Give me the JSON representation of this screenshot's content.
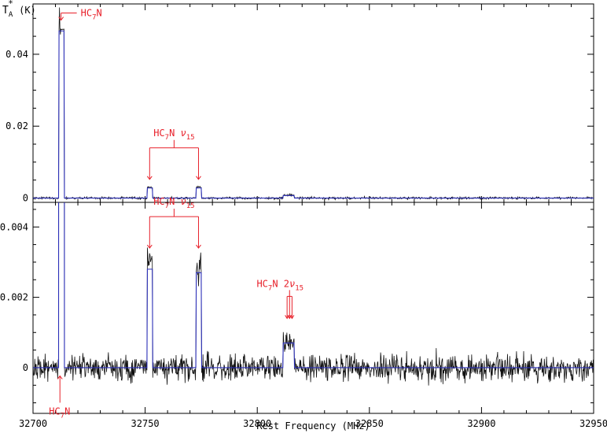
{
  "chart_data": [
    {
      "type": "line",
      "panel": "top",
      "ylabel": "T",
      "ylabel_sub": "A",
      "ylabel_sup": "*",
      "ylabel_unit": "(K)",
      "xlim": [
        32700,
        32950
      ],
      "ylim": [
        -0.0012,
        0.054
      ],
      "yticks": [
        0,
        0.02,
        0.04
      ],
      "ytick_labels": [
        "0",
        "0.02",
        "0.04"
      ],
      "series": [
        {
          "role": "observed",
          "color": "#111111",
          "spikes": [
            {
              "x": 32711.8,
              "y": 0.053
            },
            {
              "x": 32712.3,
              "y": 0.0455
            },
            {
              "x": 32713.6,
              "y": 0.047
            }
          ],
          "plateaus": [
            {
              "from": 32711.5,
              "to": 32713.9,
              "level": 0.047
            },
            {
              "from": 32751.0,
              "to": 32753.4,
              "level": 0.003
            },
            {
              "from": 32772.8,
              "to": 32775.2,
              "level": 0.003
            },
            {
              "from": 32811.5,
              "to": 32816.5,
              "level": 0.0008
            }
          ],
          "noise_rms": 0.00035
        },
        {
          "role": "model",
          "color": "#2b2fb8",
          "plateaus": [
            {
              "from": 32711.5,
              "to": 32713.9,
              "level": 0.0465
            },
            {
              "from": 32751.0,
              "to": 32753.4,
              "level": 0.0028
            },
            {
              "from": 32772.8,
              "to": 32775.2,
              "level": 0.0028
            },
            {
              "from": 32811.5,
              "to": 32816.5,
              "level": 0.0007
            }
          ]
        }
      ],
      "annotations": [
        {
          "label": "HC",
          "sub": "7",
          "tail": "N",
          "targets": [
            32712.5
          ],
          "target_y": 0.0495
        },
        {
          "label": "HC",
          "sub": "7",
          "tail": "N  ",
          "greek": "ν",
          "greek_sub": "15",
          "targets": [
            32752.0,
            32773.8
          ],
          "target_y": 0.0052
        }
      ]
    },
    {
      "type": "line",
      "panel": "bottom",
      "xlabel": "Rest Frequency (MHz)",
      "xlim": [
        32700,
        32950
      ],
      "ylim": [
        -0.0013,
        0.0047
      ],
      "xticks": [
        32700,
        32750,
        32800,
        32850,
        32900,
        32950
      ],
      "xtick_labels": [
        "32700",
        "32750",
        "32800",
        "32850",
        "32900",
        "32950"
      ],
      "yticks": [
        0,
        0.002,
        0.004
      ],
      "ytick_labels": [
        "0",
        "0.002",
        "0.004"
      ],
      "series": [
        {
          "role": "observed",
          "color": "#111111",
          "plateaus": [
            {
              "from": 32711.5,
              "to": 32713.9,
              "level": 0.047
            },
            {
              "from": 32751.0,
              "to": 32753.4,
              "level": 0.003
            },
            {
              "from": 32772.8,
              "to": 32775.2,
              "level": 0.0028
            },
            {
              "from": 32811.5,
              "to": 32816.5,
              "level": 0.0008
            }
          ],
          "noise_rms": 0.00045
        },
        {
          "role": "model",
          "color": "#2b2fb8",
          "plateaus": [
            {
              "from": 32711.5,
              "to": 32713.9,
              "level": 0.0465
            },
            {
              "from": 32751.0,
              "to": 32753.4,
              "level": 0.0028
            },
            {
              "from": 32772.8,
              "to": 32775.2,
              "level": 0.0027
            },
            {
              "from": 32811.5,
              "to": 32816.5,
              "level": 0.0007
            }
          ]
        }
      ],
      "annotations": [
        {
          "label": "HC",
          "sub": "7",
          "tail": "N  ",
          "greek": "ν",
          "greek_sub": "15",
          "targets": [
            32752.0,
            32773.8
          ],
          "target_y": 0.0034
        },
        {
          "label": "HC",
          "sub": "7",
          "tail": "N  2",
          "greek": "ν",
          "greek_sub": "15",
          "targets": [
            32813.3,
            32814.4,
            32815.5
          ],
          "target_y": 0.0014
        },
        {
          "label": "HC",
          "sub": "7",
          "tail": "N",
          "targets": [
            32712.0
          ],
          "target_y": -0.0001
        }
      ]
    }
  ],
  "colors": {
    "observed": "#111111",
    "model": "#2b2fb8",
    "annotation": "#e8202a"
  }
}
